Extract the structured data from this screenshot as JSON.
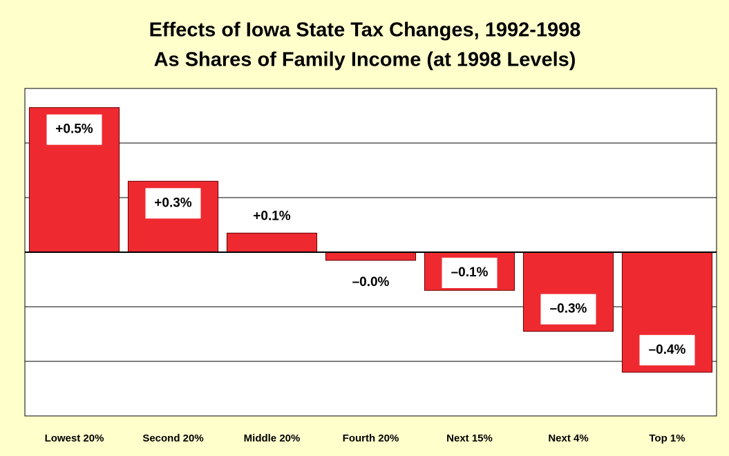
{
  "chart_data": {
    "type": "bar",
    "title": "Effects of Iowa State Tax Changes, 1992-1998",
    "subtitle": "As Shares of Family Income (at 1998 Levels)",
    "categories": [
      "Lowest 20%",
      "Second 20%",
      "Middle 20%",
      "Fourth 20%",
      "Next 15%",
      "Next 4%",
      "Top 1%"
    ],
    "values": [
      0.53,
      0.26,
      0.07,
      -0.03,
      -0.14,
      -0.29,
      -0.44
    ],
    "value_labels": [
      "+0.5%",
      "+0.3%",
      "+0.1%",
      "–0.0%",
      "–0.1%",
      "–0.3%",
      "–0.4%"
    ],
    "color": "#ee2a30",
    "ylim": [
      -0.6,
      0.6
    ],
    "yticks": [
      -0.6,
      -0.4,
      -0.2,
      0,
      0.2,
      0.4,
      0.6
    ],
    "grid": true
  }
}
